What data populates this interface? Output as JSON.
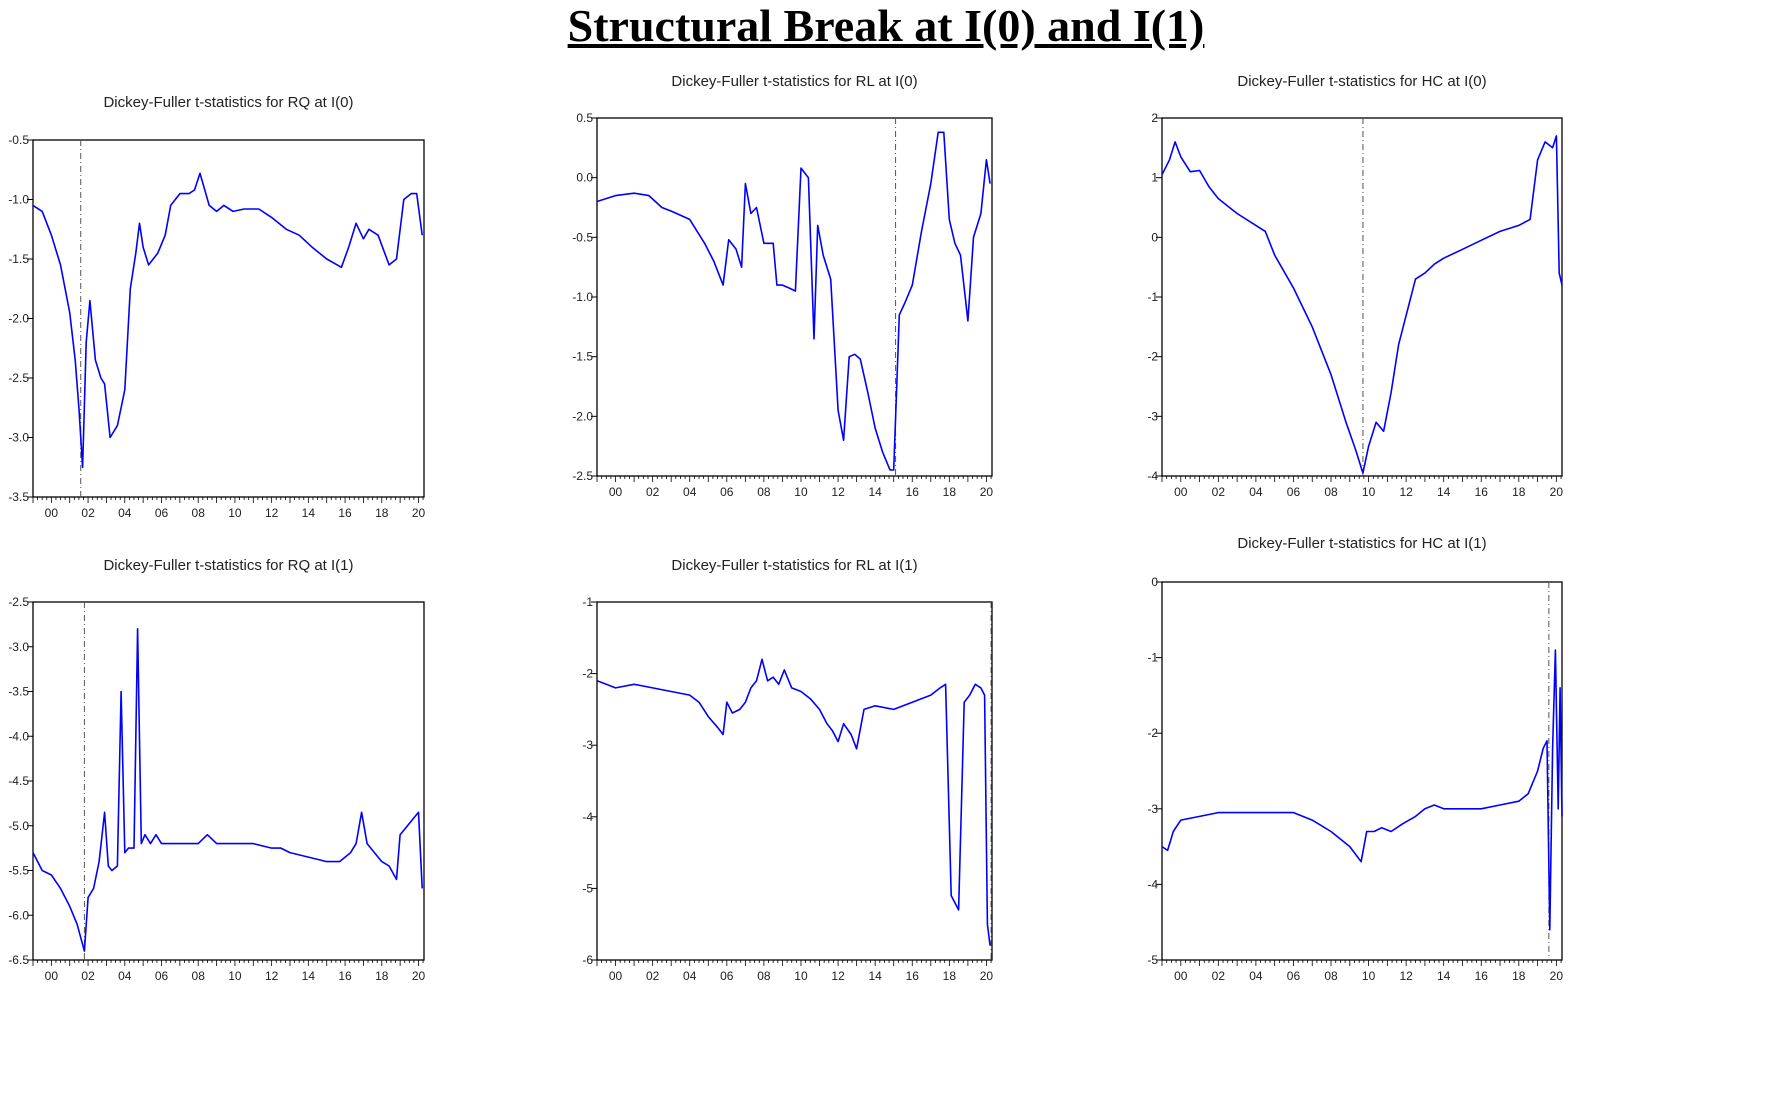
{
  "title": "Structural Break at I(0) and I(1)",
  "colors": {
    "line": "#0000ff",
    "frame": "#000000",
    "break": "#555555"
  },
  "chart_data": [
    {
      "type": "line",
      "title": "Dickey-Fuller t-statistics for RQ at I(0)",
      "xlim": [
        1999,
        2020.3
      ],
      "ylim": [
        -3.5,
        -0.5
      ],
      "yticks": [
        -0.5,
        -1.0,
        -1.5,
        -2.0,
        -2.5,
        -3.0,
        -3.5
      ],
      "ytick_labels": [
        "-0.5",
        "-1.0",
        "-1.5",
        "-2.0",
        "-2.5",
        "-3.0",
        "-3.5"
      ],
      "xticks": [
        2000,
        2002,
        2004,
        2006,
        2008,
        2010,
        2012,
        2014,
        2016,
        2018,
        2020
      ],
      "xtick_labels": [
        "00",
        "02",
        "04",
        "06",
        "08",
        "10",
        "12",
        "14",
        "16",
        "18",
        "20"
      ],
      "break_x": 2001.6,
      "x": [
        1999.0,
        1999.5,
        2000.0,
        2000.5,
        2001.0,
        2001.3,
        2001.5,
        2001.7,
        2001.9,
        2002.1,
        2002.4,
        2002.7,
        2002.9,
        2003.2,
        2003.6,
        2004.0,
        2004.3,
        2004.6,
        2004.8,
        2005.0,
        2005.3,
        2005.8,
        2006.2,
        2006.5,
        2007.0,
        2007.5,
        2007.8,
        2008.1,
        2008.6,
        2009.0,
        2009.4,
        2009.9,
        2010.5,
        2011.3,
        2012.0,
        2012.8,
        2013.5,
        2014.2,
        2015.0,
        2015.8,
        2016.2,
        2016.6,
        2017.0,
        2017.3,
        2017.8,
        2018.4,
        2018.8,
        2019.2,
        2019.6,
        2019.9,
        2020.2
      ],
      "y": [
        -1.05,
        -1.1,
        -1.3,
        -1.55,
        -1.95,
        -2.35,
        -2.75,
        -3.25,
        -2.2,
        -1.85,
        -2.35,
        -2.5,
        -2.55,
        -3.0,
        -2.9,
        -2.6,
        -1.75,
        -1.45,
        -1.2,
        -1.4,
        -1.55,
        -1.45,
        -1.3,
        -1.05,
        -0.95,
        -0.95,
        -0.92,
        -0.78,
        -1.05,
        -1.1,
        -1.05,
        -1.1,
        -1.08,
        -1.08,
        -1.15,
        -1.25,
        -1.3,
        -1.4,
        -1.5,
        -1.57,
        -1.4,
        -1.2,
        -1.33,
        -1.25,
        -1.3,
        -1.55,
        -1.5,
        -1.0,
        -0.95,
        -0.95,
        -1.3
      ]
    },
    {
      "type": "line",
      "title": "Dickey-Fuller t-statistics for RL at I(0)",
      "xlim": [
        1999,
        2020.3
      ],
      "ylim": [
        -2.5,
        0.5
      ],
      "yticks": [
        0.5,
        0.0,
        -0.5,
        -1.0,
        -1.5,
        -2.0,
        -2.5
      ],
      "ytick_labels": [
        "0.5",
        "0.0",
        "-0.5",
        "-1.0",
        "-1.5",
        "-2.0",
        "-2.5"
      ],
      "xticks": [
        2000,
        2002,
        2004,
        2006,
        2008,
        2010,
        2012,
        2014,
        2016,
        2018,
        2020
      ],
      "xtick_labels": [
        "00",
        "02",
        "04",
        "06",
        "08",
        "10",
        "12",
        "14",
        "16",
        "18",
        "20"
      ],
      "break_x": 2015.1,
      "x": [
        1999.0,
        2000.0,
        2001.0,
        2001.8,
        2002.5,
        2003.0,
        2004.0,
        2004.8,
        2005.3,
        2005.8,
        2006.1,
        2006.5,
        2006.8,
        2007.0,
        2007.3,
        2007.6,
        2008.0,
        2008.5,
        2008.7,
        2009.0,
        2009.3,
        2009.7,
        2010.0,
        2010.4,
        2010.7,
        2010.9,
        2011.2,
        2011.6,
        2012.0,
        2012.3,
        2012.6,
        2012.9,
        2013.2,
        2013.6,
        2014.0,
        2014.4,
        2014.8,
        2015.0,
        2015.3,
        2015.6,
        2016.0,
        2016.5,
        2017.0,
        2017.4,
        2017.7,
        2018.0,
        2018.3,
        2018.6,
        2019.0,
        2019.3,
        2019.7,
        2020.0,
        2020.2
      ],
      "y": [
        -0.2,
        -0.15,
        -0.13,
        -0.15,
        -0.25,
        -0.28,
        -0.35,
        -0.55,
        -0.7,
        -0.9,
        -0.52,
        -0.6,
        -0.75,
        -0.05,
        -0.3,
        -0.25,
        -0.55,
        -0.55,
        -0.9,
        -0.9,
        -0.92,
        -0.95,
        0.08,
        0.0,
        -1.35,
        -0.4,
        -0.65,
        -0.85,
        -1.95,
        -2.2,
        -1.5,
        -1.48,
        -1.52,
        -1.8,
        -2.1,
        -2.3,
        -2.45,
        -2.45,
        -1.15,
        -1.05,
        -0.9,
        -0.45,
        -0.05,
        0.38,
        0.38,
        -0.35,
        -0.55,
        -0.65,
        -1.2,
        -0.5,
        -0.3,
        0.15,
        -0.05
      ]
    },
    {
      "type": "line",
      "title": "Dickey-Fuller t-statistics for HC at I(0)",
      "xlim": [
        1999,
        2020.3
      ],
      "ylim": [
        -4,
        2
      ],
      "yticks": [
        2,
        1,
        0,
        -1,
        -2,
        -3,
        -4
      ],
      "ytick_labels": [
        "2",
        "1",
        "0",
        "-1",
        "-2",
        "-3",
        "-4"
      ],
      "xticks": [
        2000,
        2002,
        2004,
        2006,
        2008,
        2010,
        2012,
        2014,
        2016,
        2018,
        2020
      ],
      "xtick_labels": [
        "00",
        "02",
        "04",
        "06",
        "08",
        "10",
        "12",
        "14",
        "16",
        "18",
        "20"
      ],
      "break_x": 2009.7,
      "x": [
        1999.0,
        1999.4,
        1999.7,
        2000.0,
        2000.5,
        2001.0,
        2001.5,
        2002.0,
        2003.0,
        2004.0,
        2004.5,
        2005.0,
        2006.0,
        2007.0,
        2008.0,
        2008.8,
        2009.3,
        2009.7,
        2010.0,
        2010.4,
        2010.8,
        2011.2,
        2011.6,
        2012.5,
        2013.0,
        2013.5,
        2014.0,
        2015.0,
        2016.0,
        2017.0,
        2018.0,
        2018.6,
        2019.0,
        2019.4,
        2019.8,
        2020.0,
        2020.15,
        2020.3
      ],
      "y": [
        1.05,
        1.3,
        1.6,
        1.35,
        1.1,
        1.12,
        0.85,
        0.65,
        0.4,
        0.2,
        0.1,
        -0.3,
        -0.85,
        -1.5,
        -2.3,
        -3.1,
        -3.55,
        -3.95,
        -3.5,
        -3.1,
        -3.25,
        -2.6,
        -1.8,
        -0.7,
        -0.6,
        -0.45,
        -0.35,
        -0.2,
        -0.05,
        0.1,
        0.2,
        0.3,
        1.3,
        1.6,
        1.5,
        1.7,
        -0.6,
        -0.8
      ]
    },
    {
      "type": "line",
      "title": "Dickey-Fuller t-statistics for RQ at I(1)",
      "xlim": [
        1999,
        2020.3
      ],
      "ylim": [
        -6.5,
        -2.5
      ],
      "yticks": [
        -2.5,
        -3.0,
        -3.5,
        -4.0,
        -4.5,
        -5.0,
        -5.5,
        -6.0,
        -6.5
      ],
      "ytick_labels": [
        "-2.5",
        "-3.0",
        "-3.5",
        "-4.0",
        "-4.5",
        "-5.0",
        "-5.5",
        "-6.0",
        "-6.5"
      ],
      "xticks": [
        2000,
        2002,
        2004,
        2006,
        2008,
        2010,
        2012,
        2014,
        2016,
        2018,
        2020
      ],
      "xtick_labels": [
        "00",
        "02",
        "04",
        "06",
        "08",
        "10",
        "12",
        "14",
        "16",
        "18",
        "20"
      ],
      "break_x": 2001.8,
      "x": [
        1999.0,
        1999.5,
        2000.0,
        2000.5,
        2001.0,
        2001.4,
        2001.8,
        2002.0,
        2002.3,
        2002.6,
        2002.9,
        2003.1,
        2003.3,
        2003.6,
        2003.8,
        2004.0,
        2004.2,
        2004.5,
        2004.7,
        2004.9,
        2005.1,
        2005.4,
        2005.7,
        2006.0,
        2006.5,
        2007.0,
        2008.0,
        2008.5,
        2009.0,
        2009.5,
        2010.0,
        2011.0,
        2012.0,
        2012.5,
        2013.0,
        2014.0,
        2015.0,
        2015.7,
        2016.0,
        2016.3,
        2016.6,
        2016.9,
        2017.2,
        2017.6,
        2018.0,
        2018.4,
        2018.8,
        2019.0,
        2019.4,
        2019.8,
        2020.0,
        2020.2
      ],
      "y": [
        -5.3,
        -5.5,
        -5.55,
        -5.7,
        -5.9,
        -6.1,
        -6.4,
        -5.8,
        -5.7,
        -5.4,
        -4.85,
        -5.45,
        -5.5,
        -5.45,
        -3.5,
        -5.3,
        -5.25,
        -5.25,
        -2.8,
        -5.2,
        -5.1,
        -5.2,
        -5.1,
        -5.2,
        -5.2,
        -5.2,
        -5.2,
        -5.1,
        -5.2,
        -5.2,
        -5.2,
        -5.2,
        -5.25,
        -5.25,
        -5.3,
        -5.35,
        -5.4,
        -5.4,
        -5.35,
        -5.3,
        -5.2,
        -4.85,
        -5.2,
        -5.3,
        -5.4,
        -5.45,
        -5.6,
        -5.1,
        -5.0,
        -4.9,
        -4.85,
        -5.7
      ]
    },
    {
      "type": "line",
      "title": "Dickey-Fuller t-statistics for RL at I(1)",
      "xlim": [
        1999,
        2020.3
      ],
      "ylim": [
        -6,
        -1
      ],
      "yticks": [
        -1,
        -2,
        -3,
        -4,
        -5,
        -6
      ],
      "ytick_labels": [
        "-1",
        "-2",
        "-3",
        "-4",
        "-5",
        "-6"
      ],
      "xticks": [
        2000,
        2002,
        2004,
        2006,
        2008,
        2010,
        2012,
        2014,
        2016,
        2018,
        2020
      ],
      "xtick_labels": [
        "00",
        "02",
        "04",
        "06",
        "08",
        "10",
        "12",
        "14",
        "16",
        "18",
        "20"
      ],
      "break_x": 2020.25,
      "x": [
        1999.0,
        1999.5,
        2000.0,
        2001.0,
        2002.0,
        2003.0,
        2004.0,
        2004.5,
        2005.0,
        2005.5,
        2005.8,
        2006.0,
        2006.3,
        2006.7,
        2007.0,
        2007.3,
        2007.6,
        2007.9,
        2008.2,
        2008.5,
        2008.8,
        2009.1,
        2009.5,
        2010.0,
        2010.5,
        2011.0,
        2011.4,
        2011.7,
        2012.0,
        2012.3,
        2012.7,
        2013.0,
        2013.4,
        2014.0,
        2015.0,
        2016.0,
        2017.0,
        2017.5,
        2017.8,
        2018.1,
        2018.5,
        2018.8,
        2019.1,
        2019.4,
        2019.7,
        2019.9,
        2020.05,
        2020.2
      ],
      "y": [
        -2.1,
        -2.15,
        -2.2,
        -2.15,
        -2.2,
        -2.25,
        -2.3,
        -2.4,
        -2.6,
        -2.75,
        -2.85,
        -2.4,
        -2.55,
        -2.5,
        -2.4,
        -2.2,
        -2.1,
        -1.8,
        -2.1,
        -2.05,
        -2.15,
        -1.95,
        -2.2,
        -2.25,
        -2.35,
        -2.5,
        -2.7,
        -2.8,
        -2.95,
        -2.7,
        -2.85,
        -3.05,
        -2.5,
        -2.45,
        -2.5,
        -2.4,
        -2.3,
        -2.2,
        -2.15,
        -5.1,
        -5.3,
        -2.4,
        -2.3,
        -2.15,
        -2.2,
        -2.3,
        -5.5,
        -5.8
      ]
    },
    {
      "type": "line",
      "title": "Dickey-Fuller t-statistics for HC at I(1)",
      "xlim": [
        1999,
        2020.3
      ],
      "ylim": [
        -5,
        0
      ],
      "yticks": [
        0,
        -1,
        -2,
        -3,
        -4,
        -5
      ],
      "ytick_labels": [
        "0",
        "-1",
        "-2",
        "-3",
        "-4",
        "-5"
      ],
      "xticks": [
        2000,
        2002,
        2004,
        2006,
        2008,
        2010,
        2012,
        2014,
        2016,
        2018,
        2020
      ],
      "xtick_labels": [
        "00",
        "02",
        "04",
        "06",
        "08",
        "10",
        "12",
        "14",
        "16",
        "18",
        "20"
      ],
      "break_x": 2019.6,
      "x": [
        1999.0,
        1999.3,
        1999.6,
        2000.0,
        2001.0,
        2002.0,
        2003.0,
        2004.0,
        2005.0,
        2006.0,
        2007.0,
        2008.0,
        2009.0,
        2009.6,
        2009.9,
        2010.3,
        2010.7,
        2011.2,
        2011.8,
        2012.5,
        2013.0,
        2013.5,
        2014.0,
        2015.0,
        2016.0,
        2017.0,
        2018.0,
        2018.5,
        2019.0,
        2019.3,
        2019.5,
        2019.65,
        2019.8,
        2019.95,
        2020.1,
        2020.2,
        2020.3
      ],
      "y": [
        -3.5,
        -3.55,
        -3.3,
        -3.15,
        -3.1,
        -3.05,
        -3.05,
        -3.05,
        -3.05,
        -3.05,
        -3.15,
        -3.3,
        -3.5,
        -3.7,
        -3.3,
        -3.3,
        -3.25,
        -3.3,
        -3.2,
        -3.1,
        -3.0,
        -2.95,
        -3.0,
        -3.0,
        -3.0,
        -2.95,
        -2.9,
        -2.8,
        -2.5,
        -2.2,
        -2.1,
        -4.6,
        -2.2,
        -0.9,
        -3.0,
        -1.4,
        -3.1
      ]
    }
  ]
}
